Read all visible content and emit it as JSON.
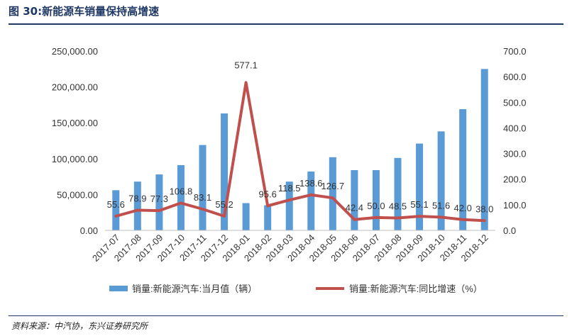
{
  "header": {
    "title": "图 30:新能源车销量保持高增速"
  },
  "footer": {
    "source": "资料来源：中汽协，东兴证券研究所"
  },
  "colors": {
    "bar": "#5b9bd5",
    "line": "#c0504d",
    "title": "#1f3864"
  },
  "chart_data": {
    "type": "bar",
    "categories": [
      "2017-07",
      "2017-08",
      "2017-09",
      "2017-10",
      "2017-11",
      "2017-12",
      "2018-01",
      "2018-02",
      "2018-03",
      "2018-04",
      "2018-05",
      "2018-06",
      "2018-07",
      "2018-08",
      "2018-09",
      "2018-10",
      "2018-11",
      "2018-12"
    ],
    "series": [
      {
        "name": "销量:新能源汽车:当月值（辆）",
        "type": "bar",
        "axis": "left",
        "values": [
          56000,
          68000,
          78000,
          91000,
          119000,
          163000,
          38000,
          35000,
          68000,
          82000,
          102000,
          84000,
          84000,
          101000,
          121000,
          138000,
          169000,
          225000
        ]
      },
      {
        "name": "销量:新能源汽车:同比增速（%）",
        "type": "line",
        "axis": "right",
        "values": [
          55.6,
          78.9,
          77.3,
          106.8,
          83.1,
          55.2,
          577.1,
          95.6,
          118.5,
          138.6,
          126.7,
          42.4,
          50.0,
          48.5,
          55.1,
          51.6,
          42.0,
          38.0
        ],
        "labels": [
          "55.6",
          "78.9",
          "77.3",
          "106.8",
          "83.1",
          "55.2",
          "577.1",
          "95.6",
          "118.5",
          "138.6",
          "126.7",
          "42.4",
          "50.0",
          "48.5",
          "55.1",
          "51.6",
          "42.0",
          "38.0"
        ]
      }
    ],
    "left_axis": {
      "min": 0,
      "max": 250000,
      "tick_labels": [
        "0.00",
        "50,000.00",
        "100,000.00",
        "150,000.00",
        "200,000.00",
        "250,000.00"
      ]
    },
    "right_axis": {
      "min": 0,
      "max": 700,
      "tick_labels": [
        "0.0",
        "100.0",
        "200.0",
        "300.0",
        "400.0",
        "500.0",
        "600.0",
        "700.0"
      ]
    },
    "grid": false,
    "legend_position": "bottom"
  }
}
